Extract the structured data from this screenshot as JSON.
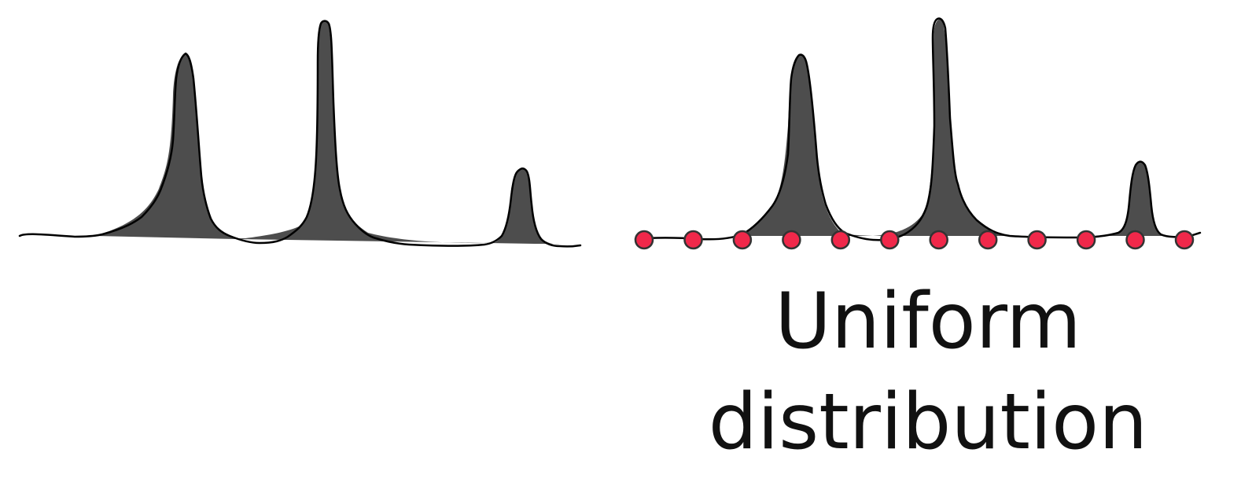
{
  "colors": {
    "density_fill": "#4d4d4d",
    "outline": "#000000",
    "sample_dot": "#f0284a",
    "sample_dot_stroke": "#333333",
    "text": "#111111"
  },
  "left_panel": {
    "kind": "multimodal-density",
    "peaks": 3,
    "sample_points": 0
  },
  "right_panel": {
    "kind": "multimodal-density-with-samples",
    "peaks": 3,
    "sample_points": 12,
    "sample_spacing": "uniform"
  },
  "caption": {
    "line1": "Uniform",
    "line2": "distribution"
  }
}
